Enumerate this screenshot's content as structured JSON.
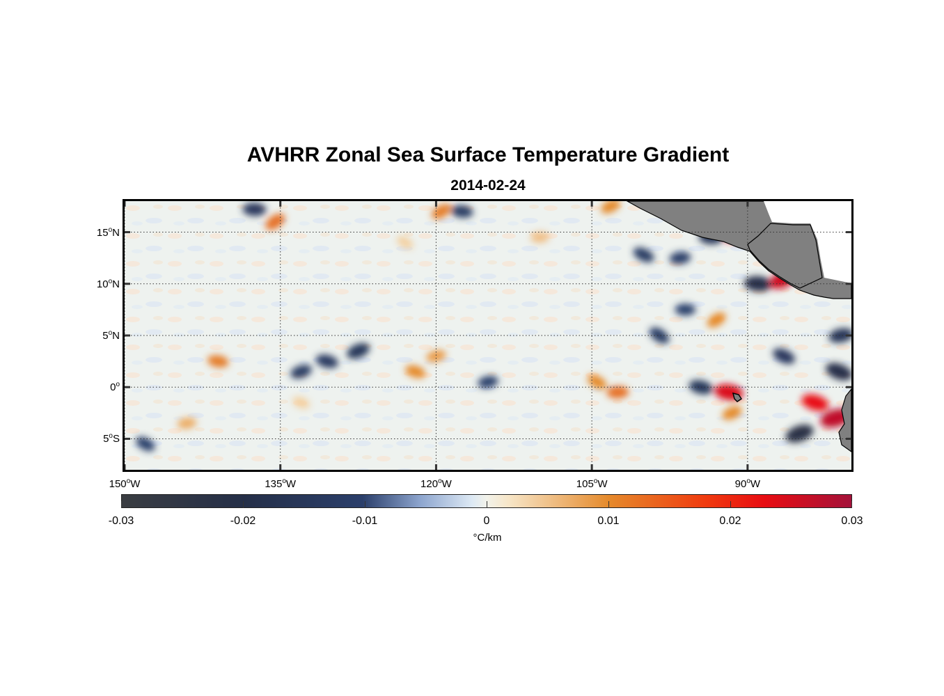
{
  "title": "AVHRR Zonal Sea Surface Temperature Gradient",
  "subtitle": "2014-02-24",
  "map": {
    "lat_range": [
      -8,
      18
    ],
    "lon_range": [
      -150,
      -80
    ],
    "lat_labels": [
      {
        "deg": "15",
        "hemi": "N",
        "value": 15
      },
      {
        "deg": "10",
        "hemi": "N",
        "value": 10
      },
      {
        "deg": "5",
        "hemi": "N",
        "value": 5
      },
      {
        "deg": "0",
        "hemi": "",
        "value": 0
      },
      {
        "deg": "5",
        "hemi": "S",
        "value": -5
      }
    ],
    "lon_labels": [
      {
        "deg": "150",
        "hemi": "W",
        "value": -150
      },
      {
        "deg": "135",
        "hemi": "W",
        "value": -135
      },
      {
        "deg": "120",
        "hemi": "W",
        "value": -120
      },
      {
        "deg": "105",
        "hemi": "W",
        "value": -105
      },
      {
        "deg": "90",
        "hemi": "W",
        "value": -90
      }
    ],
    "land_color": "#808080",
    "grid_style": "dotted"
  },
  "colorbar": {
    "ticks": [
      {
        "label": "-0.03",
        "value": -0.03
      },
      {
        "label": "-0.02",
        "value": -0.02
      },
      {
        "label": "-0.01",
        "value": -0.01
      },
      {
        "label": "0",
        "value": 0
      },
      {
        "label": "0.01",
        "value": 0.01
      },
      {
        "label": "0.02",
        "value": 0.02
      },
      {
        "label": "0.03",
        "value": 0.03
      }
    ],
    "range": [
      -0.03,
      0.03
    ],
    "units": "°C/km"
  },
  "features": [
    {
      "lon": -135.5,
      "lat": 16,
      "value": 0.012
    },
    {
      "lon": -137.5,
      "lat": 17.2,
      "value": -0.014
    },
    {
      "lon": -119.5,
      "lat": 17,
      "value": 0.011
    },
    {
      "lon": -117.5,
      "lat": 17,
      "value": -0.012
    },
    {
      "lon": -103.2,
      "lat": 17.5,
      "value": 0.01
    },
    {
      "lon": -141,
      "lat": 2.5,
      "value": 0.011
    },
    {
      "lon": -127.5,
      "lat": 3.5,
      "value": -0.015
    },
    {
      "lon": -130.5,
      "lat": 2.5,
      "value": -0.013
    },
    {
      "lon": -133,
      "lat": 1.5,
      "value": -0.012
    },
    {
      "lon": -122,
      "lat": 1.5,
      "value": 0.01
    },
    {
      "lon": -120,
      "lat": 3,
      "value": 0.009
    },
    {
      "lon": -133,
      "lat": -1.5,
      "value": 0.006
    },
    {
      "lon": -115,
      "lat": 0.5,
      "value": -0.01
    },
    {
      "lon": -100,
      "lat": 12.8,
      "value": -0.012
    },
    {
      "lon": -96.5,
      "lat": 12.5,
      "value": -0.011
    },
    {
      "lon": -104.5,
      "lat": 0.5,
      "value": 0.01
    },
    {
      "lon": -102.5,
      "lat": -0.5,
      "value": 0.012
    },
    {
      "lon": -98.5,
      "lat": 5,
      "value": -0.012
    },
    {
      "lon": -93.5,
      "lat": 14.5,
      "value": -0.016
    },
    {
      "lon": -91,
      "lat": 15,
      "value": 0.02
    },
    {
      "lon": -89,
      "lat": 10,
      "value": -0.02
    },
    {
      "lon": -86.5,
      "lat": 10.5,
      "value": 0.024
    },
    {
      "lon": -91.8,
      "lat": -0.5,
      "value": 0.022
    },
    {
      "lon": -91.5,
      "lat": -2.5,
      "value": 0.01
    },
    {
      "lon": -94.5,
      "lat": 0,
      "value": -0.015
    },
    {
      "lon": -85,
      "lat": -4.5,
      "value": -0.022
    },
    {
      "lon": -83.5,
      "lat": -1.5,
      "value": 0.02
    },
    {
      "lon": -81.5,
      "lat": -3,
      "value": 0.026
    },
    {
      "lon": -81.2,
      "lat": 1.5,
      "value": -0.02
    },
    {
      "lon": -81,
      "lat": 5,
      "value": -0.016
    },
    {
      "lon": -86.5,
      "lat": 3,
      "value": -0.014
    },
    {
      "lon": -144,
      "lat": -3.5,
      "value": 0.008
    },
    {
      "lon": -148,
      "lat": -5.5,
      "value": -0.01
    },
    {
      "lon": -110,
      "lat": 14.5,
      "value": 0.007
    },
    {
      "lon": -123,
      "lat": 14,
      "value": 0.006
    },
    {
      "lon": -96,
      "lat": 7.5,
      "value": -0.01
    },
    {
      "lon": -93,
      "lat": 6.5,
      "value": 0.01
    }
  ]
}
